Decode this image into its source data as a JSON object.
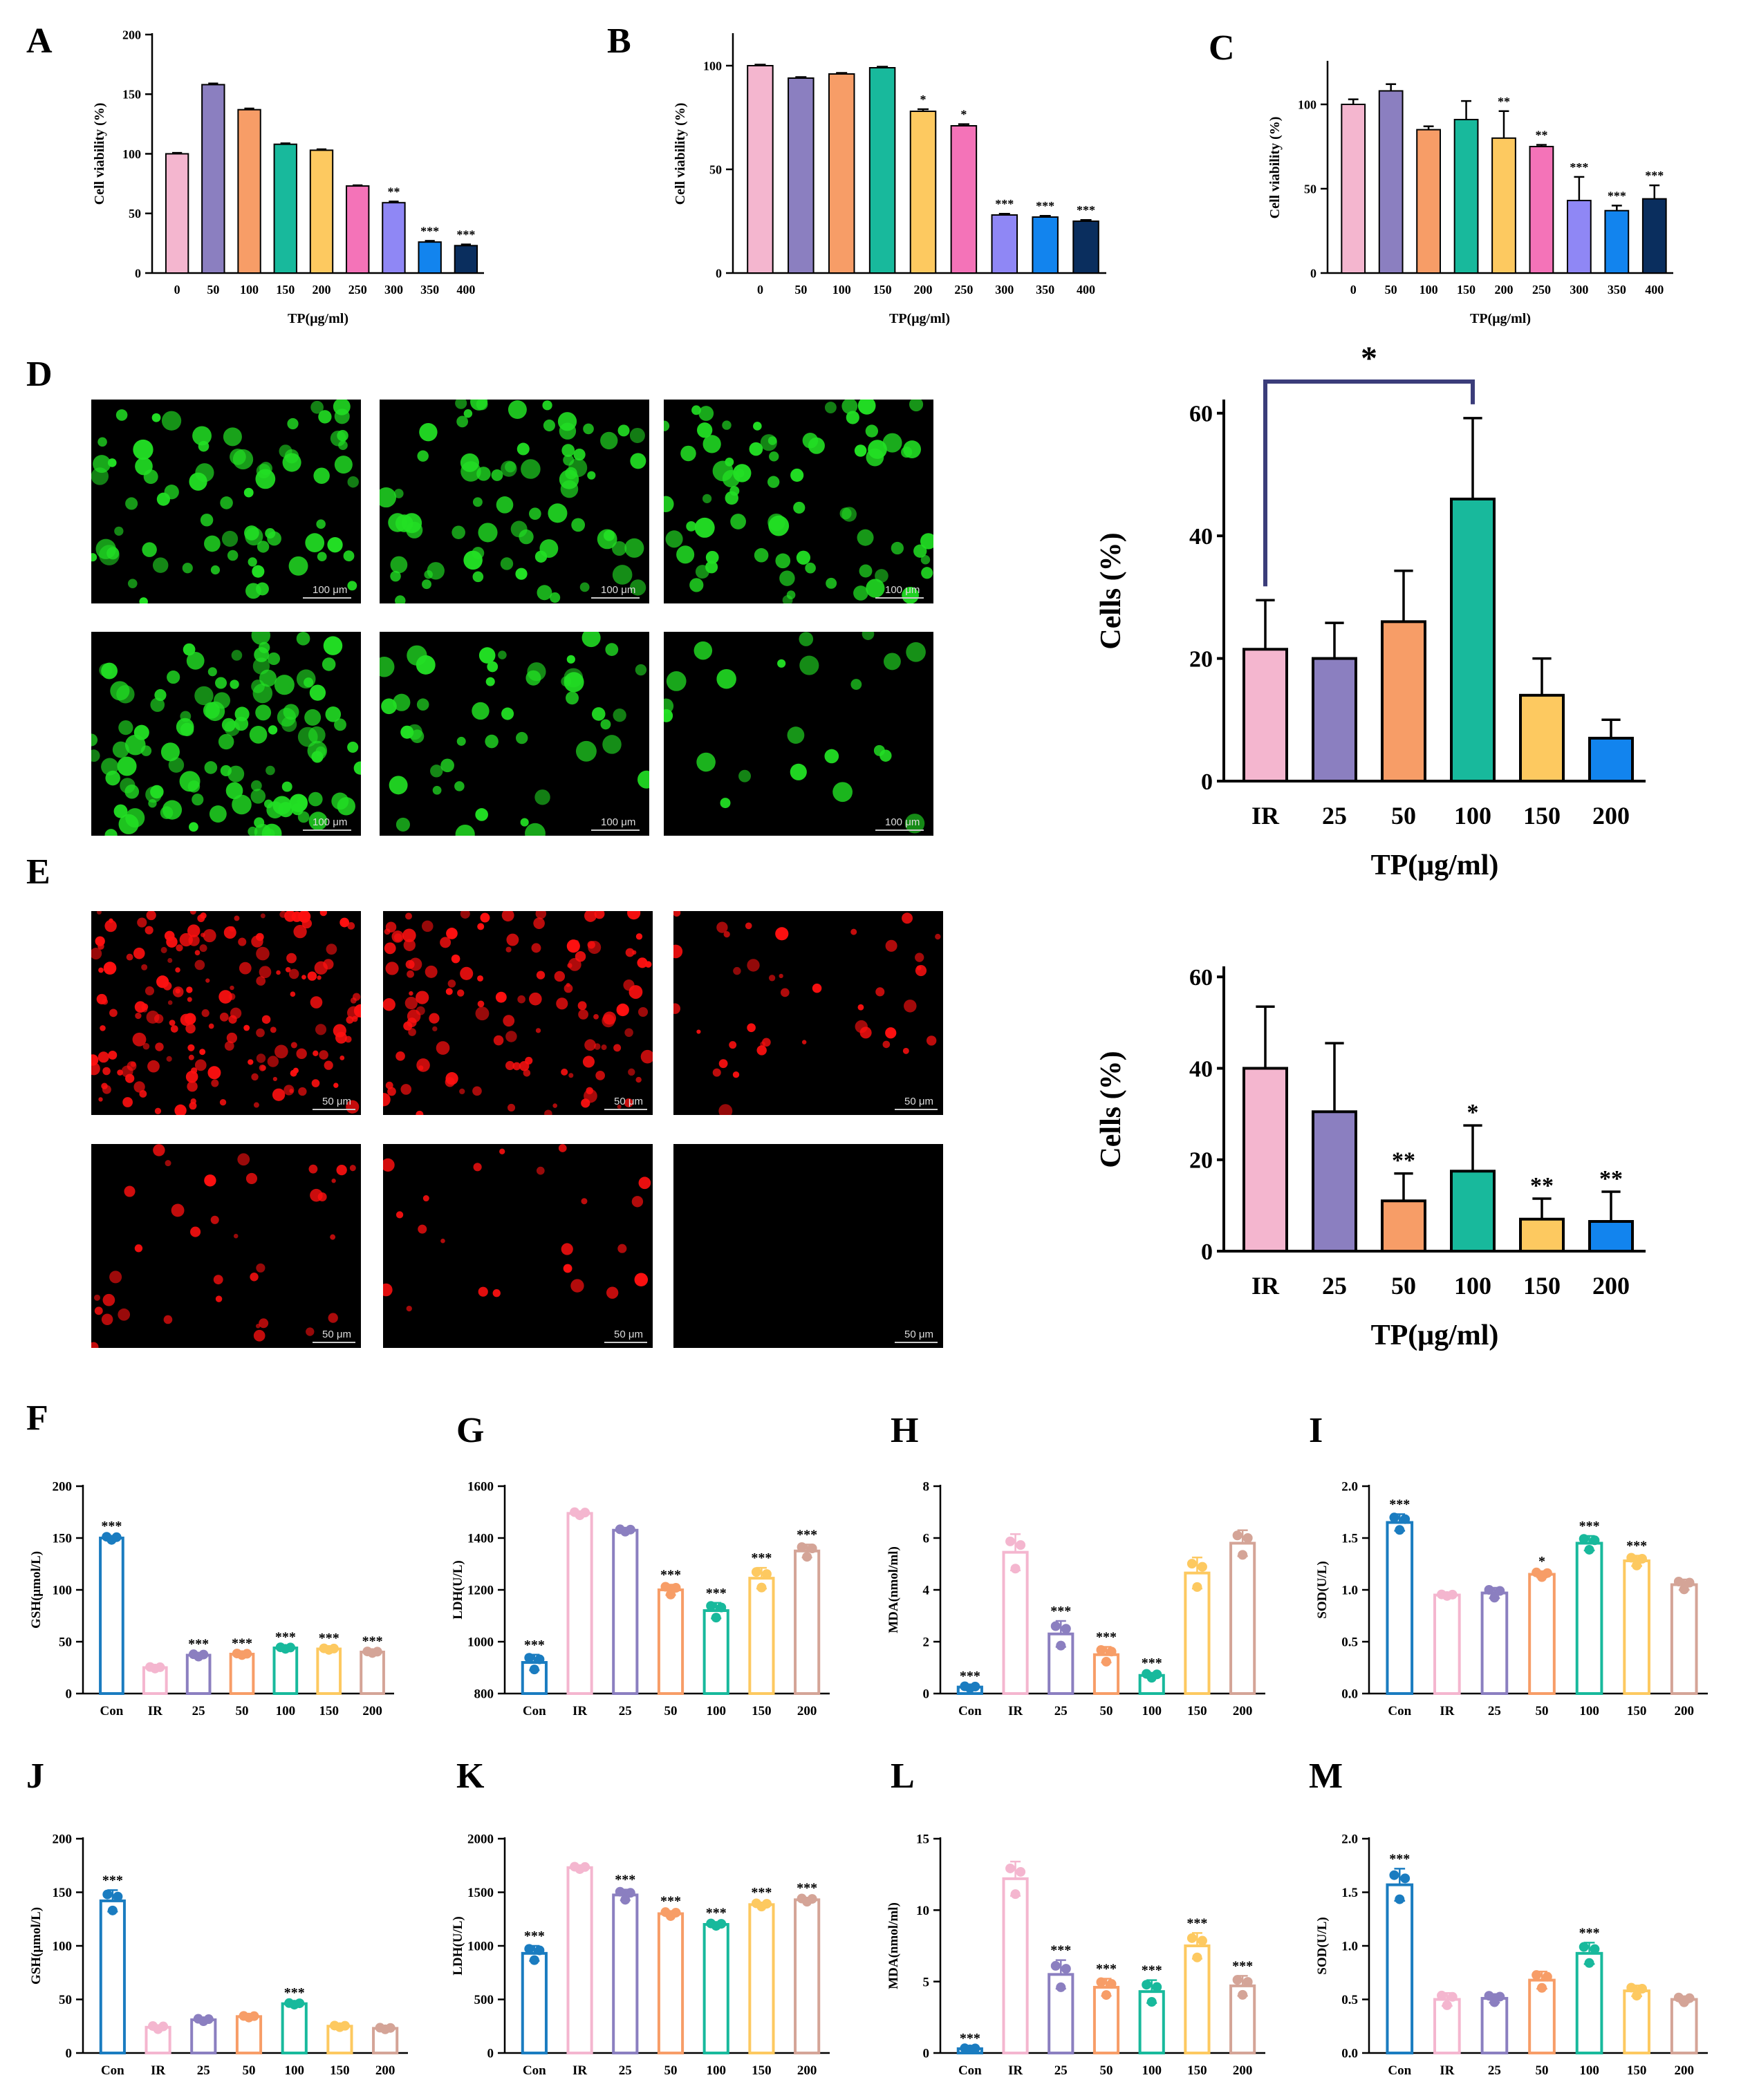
{
  "colors": {
    "palette9": [
      "#f4b6cf",
      "#8b7fc0",
      "#f79d67",
      "#18b99c",
      "#fdc960",
      "#f473b8",
      "#8f87f5",
      "#1284ee",
      "#0a2e5e"
    ],
    "palette6": [
      "#f4b6cf",
      "#8b7fc0",
      "#f79d67",
      "#18b99c",
      "#fdc960",
      "#1284ee"
    ],
    "palette7": [
      "#1a7cc0",
      "#f4b6cf",
      "#8b7fc0",
      "#f79d67",
      "#18b99c",
      "#fdc960",
      "#d4a497"
    ],
    "bracket": "#3b3d7a",
    "green_cells": "#22e024",
    "red_cells": "#ff1010"
  },
  "chart_data": [
    {
      "panel": "A",
      "type": "bar",
      "xlabel": "TP(μg/ml)",
      "ylabel": "Cell viability (%)",
      "ylim": [
        0,
        200
      ],
      "ticks": [
        0,
        50,
        100,
        150,
        200
      ],
      "categories": [
        "0",
        "50",
        "100",
        "150",
        "200",
        "250",
        "300",
        "350",
        "400"
      ],
      "values": [
        100,
        158,
        137,
        108,
        103,
        73,
        59,
        26,
        23
      ],
      "errors": [
        0.8,
        1,
        1,
        0.8,
        0.8,
        0.6,
        1,
        1,
        1
      ],
      "sig": [
        "",
        "",
        "",
        "",
        "",
        "",
        "**",
        "***",
        "***"
      ]
    },
    {
      "panel": "B",
      "type": "bar",
      "xlabel": "TP(μg/ml)",
      "ylabel": "Cell viability (%)",
      "ylim": [
        0,
        115
      ],
      "ticks": [
        0,
        50,
        100
      ],
      "categories": [
        "0",
        "50",
        "100",
        "150",
        "200",
        "250",
        "300",
        "350",
        "400"
      ],
      "values": [
        100,
        94,
        96,
        99,
        78,
        71,
        28,
        27,
        25
      ],
      "errors": [
        0.5,
        0.5,
        0.5,
        0.5,
        1,
        0.8,
        0.6,
        0.6,
        0.6
      ],
      "sig": [
        "",
        "",
        "",
        "",
        "*",
        "*",
        "***",
        "***",
        "***"
      ]
    },
    {
      "panel": "C",
      "type": "bar",
      "xlabel": "TP(μg/ml)",
      "ylabel": "Cell viability (%)",
      "ylim": [
        0,
        125
      ],
      "ticks": [
        0,
        50,
        100
      ],
      "categories": [
        "0",
        "50",
        "100",
        "150",
        "200",
        "250",
        "300",
        "350",
        "400"
      ],
      "values": [
        100,
        108,
        85,
        91,
        80,
        75,
        43,
        37,
        44
      ],
      "errors": [
        3,
        4,
        2,
        11,
        16,
        1,
        14,
        3,
        8
      ],
      "sig": [
        "",
        "",
        "",
        "",
        "**",
        "**",
        "***",
        "***",
        "***"
      ]
    },
    {
      "panel": "D",
      "type": "bar",
      "xlabel": "TP(μg/ml)",
      "ylabel": "Cells (%)",
      "ylim": [
        0,
        62
      ],
      "ticks": [
        0,
        20,
        40,
        60
      ],
      "categories": [
        "IR",
        "25",
        "50",
        "100",
        "150",
        "200"
      ],
      "values": [
        21.5,
        20,
        26,
        46,
        14,
        7
      ],
      "errors": [
        8,
        5.8,
        8.3,
        13.2,
        6,
        3
      ],
      "sig": [
        "",
        "",
        "",
        "",
        "",
        ""
      ],
      "bracket": {
        "from": 0,
        "to": 3,
        "label": "*"
      }
    },
    {
      "panel": "E",
      "type": "bar",
      "xlabel": "TP(μg/ml)",
      "ylabel": "Cells (%)",
      "ylim": [
        0,
        62
      ],
      "ticks": [
        0,
        20,
        40,
        60
      ],
      "categories": [
        "IR",
        "25",
        "50",
        "100",
        "150",
        "200"
      ],
      "values": [
        40,
        30.5,
        11,
        17.5,
        7,
        6.5
      ],
      "errors": [
        13.5,
        15,
        6,
        10,
        4.5,
        6.5
      ],
      "sig": [
        "",
        "",
        "**",
        "*",
        "**",
        "**"
      ]
    },
    {
      "panel": "F",
      "type": "bar",
      "xlabel": "",
      "ylabel": "GSH(μmol/L)",
      "ylim": [
        0,
        200
      ],
      "ticks": [
        0,
        50,
        100,
        150,
        200
      ],
      "categories": [
        "Con",
        "IR",
        "25",
        "50",
        "100",
        "150",
        "200"
      ],
      "values": [
        150,
        25,
        37,
        38,
        44,
        43,
        40
      ],
      "errors": [
        2,
        1,
        1.5,
        1,
        1,
        1,
        1
      ],
      "sig": [
        "***",
        "",
        "***",
        "***",
        "***",
        "***",
        "***"
      ]
    },
    {
      "panel": "G",
      "type": "bar",
      "xlabel": "",
      "ylabel": "LDH(U/L)",
      "ylim": [
        800,
        1600
      ],
      "ticks": [
        800,
        1000,
        1200,
        1400,
        1600
      ],
      "categories": [
        "Con",
        "IR",
        "25",
        "50",
        "100",
        "150",
        "200"
      ],
      "values": [
        920,
        1495,
        1430,
        1200,
        1120,
        1245,
        1350
      ],
      "errors": [
        30,
        8,
        6,
        20,
        30,
        40,
        25
      ],
      "sig": [
        "***",
        "",
        "",
        "***",
        "***",
        "***",
        "***"
      ]
    },
    {
      "panel": "H",
      "type": "bar",
      "xlabel": "",
      "ylabel": "MDA(nmol/ml)",
      "ylim": [
        0,
        8
      ],
      "ticks": [
        0,
        2,
        4,
        6,
        8
      ],
      "categories": [
        "Con",
        "IR",
        "25",
        "50",
        "100",
        "150",
        "200"
      ],
      "values": [
        0.25,
        5.45,
        2.3,
        1.5,
        0.7,
        4.65,
        5.8
      ],
      "errors": [
        0.05,
        0.7,
        0.5,
        0.3,
        0.1,
        0.6,
        0.5
      ],
      "sig": [
        "***",
        "",
        "***",
        "***",
        "***",
        "",
        ""
      ]
    },
    {
      "panel": "I",
      "type": "bar",
      "xlabel": "",
      "ylabel": "SOD(U/L)",
      "ylim": [
        0,
        2
      ],
      "ticks": [
        0.0,
        0.5,
        1.0,
        1.5,
        2.0
      ],
      "categories": [
        "Con",
        "IR",
        "25",
        "50",
        "100",
        "150",
        "200"
      ],
      "values": [
        1.65,
        0.95,
        0.97,
        1.15,
        1.45,
        1.28,
        1.05
      ],
      "errors": [
        0.08,
        0.01,
        0.05,
        0.03,
        0.07,
        0.05,
        0.05
      ],
      "sig": [
        "***",
        "",
        "",
        "*",
        "***",
        "***",
        ""
      ]
    },
    {
      "panel": "J",
      "type": "bar",
      "xlabel": "",
      "ylabel": "GSH(μmol/L)",
      "ylim": [
        0,
        200
      ],
      "ticks": [
        0,
        50,
        100,
        150,
        200
      ],
      "categories": [
        "Con",
        "IR",
        "25",
        "50",
        "100",
        "150",
        "200"
      ],
      "values": [
        142,
        24,
        31,
        34,
        46,
        25,
        23
      ],
      "errors": [
        10,
        2,
        1.5,
        1,
        1,
        1,
        1
      ],
      "sig": [
        "***",
        "",
        "",
        "",
        "***",
        "",
        ""
      ]
    },
    {
      "panel": "K",
      "type": "bar",
      "xlabel": "",
      "ylabel": "LDH(U/L)",
      "ylim": [
        0,
        2000
      ],
      "ticks": [
        0,
        500,
        1000,
        1500,
        2000
      ],
      "categories": [
        "Con",
        "IR",
        "25",
        "50",
        "100",
        "150",
        "200"
      ],
      "values": [
        930,
        1730,
        1475,
        1300,
        1200,
        1385,
        1430
      ],
      "errors": [
        70,
        15,
        50,
        25,
        15,
        20,
        20
      ],
      "sig": [
        "***",
        "",
        "***",
        "***",
        "***",
        "***",
        "***"
      ]
    },
    {
      "panel": "L",
      "type": "bar",
      "xlabel": "",
      "ylabel": "MDA(nmol/ml)",
      "ylim": [
        0,
        15
      ],
      "ticks": [
        0,
        5,
        10,
        15
      ],
      "categories": [
        "Con",
        "IR",
        "25",
        "50",
        "100",
        "150",
        "200"
      ],
      "values": [
        0.3,
        12.2,
        5.5,
        4.6,
        4.3,
        7.5,
        4.7
      ],
      "errors": [
        0.05,
        1.2,
        1,
        0.6,
        0.8,
        0.9,
        0.7
      ],
      "sig": [
        "***",
        "",
        "***",
        "***",
        "***",
        "***",
        "***"
      ]
    },
    {
      "panel": "M",
      "type": "bar",
      "xlabel": "",
      "ylabel": "SOD(U/L)",
      "ylim": [
        0,
        2
      ],
      "ticks": [
        0.0,
        0.5,
        1.0,
        1.5,
        2.0
      ],
      "categories": [
        "Con",
        "IR",
        "25",
        "50",
        "100",
        "150",
        "200"
      ],
      "values": [
        1.57,
        0.5,
        0.51,
        0.68,
        0.93,
        0.58,
        0.5
      ],
      "errors": [
        0.15,
        0.06,
        0.04,
        0.08,
        0.1,
        0.05,
        0.03
      ],
      "sig": [
        "***",
        "",
        "",
        "",
        "***",
        "",
        ""
      ]
    }
  ],
  "micrographs": {
    "green_scale": "100 μm",
    "red_scale": "50 μm"
  }
}
